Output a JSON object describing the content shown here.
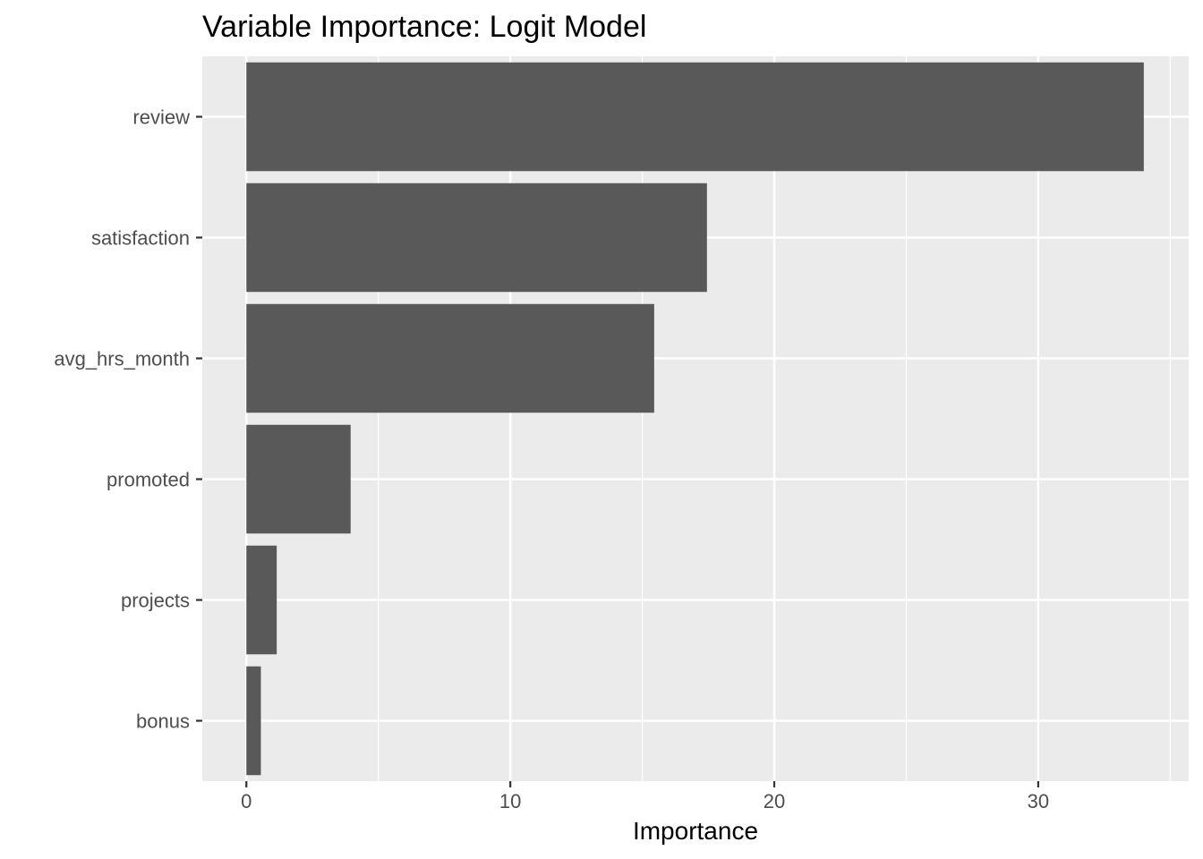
{
  "chart_data": {
    "type": "bar",
    "orientation": "horizontal",
    "title": "Variable Importance: Logit Model",
    "xlabel": "Importance",
    "ylabel": "",
    "categories": [
      "review",
      "satisfaction",
      "avg_hrs_month",
      "promoted",
      "projects",
      "bonus"
    ],
    "values": [
      34.0,
      17.45,
      15.45,
      3.95,
      1.15,
      0.55
    ],
    "xlim": [
      -1.67,
      35.7
    ],
    "x_ticks": [
      0,
      10,
      20,
      30
    ],
    "x_tick_labels": [
      "0",
      "10",
      "20",
      "30"
    ],
    "grid": true,
    "legend": "none",
    "colors": {
      "bar": "#595959",
      "panel": "#ebebeb",
      "grid": "#ffffff"
    }
  }
}
